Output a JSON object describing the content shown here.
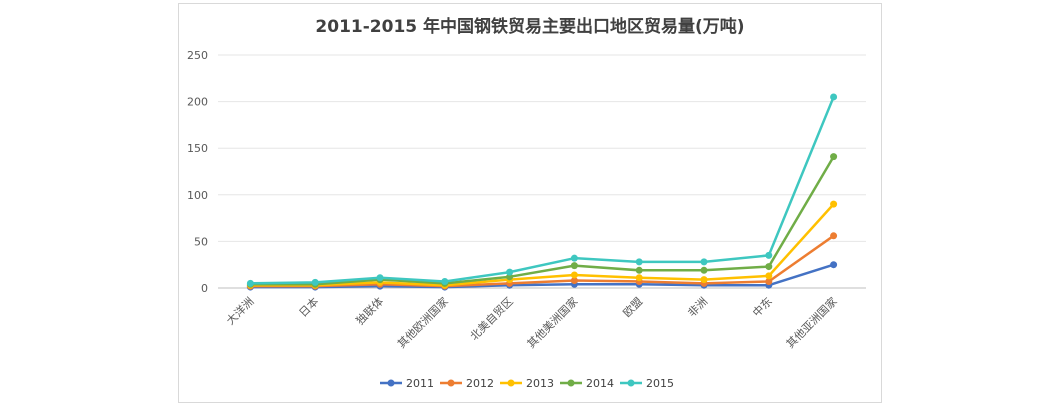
{
  "chart_data": {
    "type": "line",
    "title": "2011-2015 年中国钢铁贸易主要出口地区贸易量(万吨)",
    "xlabel": "",
    "ylabel": "",
    "categories": [
      "大洋洲",
      "日本",
      "独联体",
      "其他欧洲国家",
      "北美自贸区",
      "其他美洲国家",
      "欧盟",
      "非洲",
      "中东",
      "其他亚洲国家"
    ],
    "ylim": [
      0,
      250
    ],
    "yticks": [
      0,
      50,
      100,
      150,
      200,
      250
    ],
    "grid": true,
    "legend_position": "bottom",
    "series": [
      {
        "name": "2011",
        "color": "#4472c4",
        "values": [
          1,
          1,
          2,
          1,
          3,
          4,
          4,
          3,
          3,
          25
        ]
      },
      {
        "name": "2012",
        "color": "#ed7d31",
        "values": [
          2,
          2,
          4,
          2,
          5,
          8,
          7,
          5,
          7,
          56
        ]
      },
      {
        "name": "2013",
        "color": "#ffc000",
        "values": [
          3,
          3,
          6,
          3,
          9,
          14,
          11,
          9,
          13,
          90
        ]
      },
      {
        "name": "2014",
        "color": "#70ad47",
        "values": [
          4,
          4,
          9,
          5,
          12,
          24,
          19,
          19,
          23,
          141
        ]
      },
      {
        "name": "2015",
        "color": "#3ec7c0",
        "values": [
          5,
          6,
          11,
          7,
          17,
          32,
          28,
          28,
          35,
          205
        ]
      }
    ]
  }
}
